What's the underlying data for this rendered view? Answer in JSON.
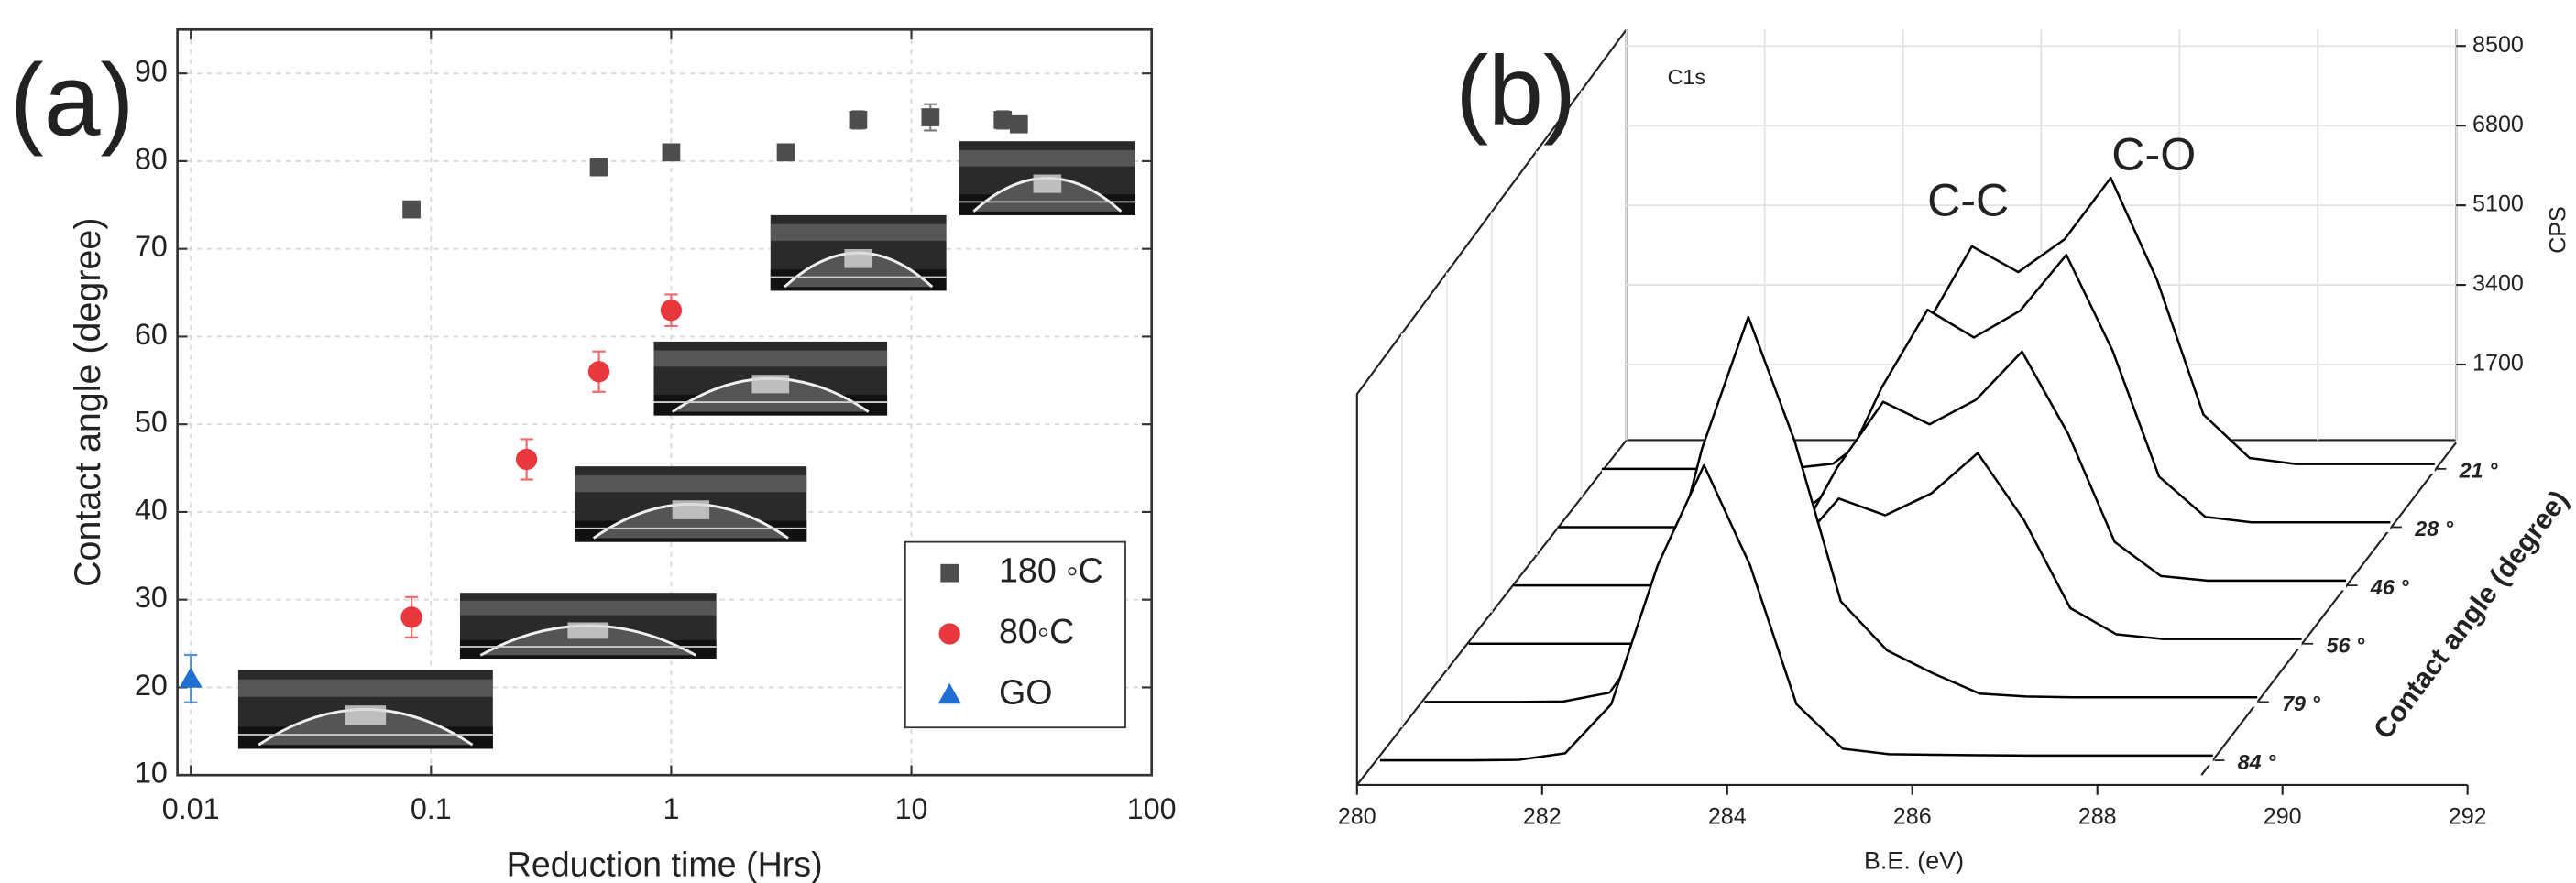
{
  "chart_data": [
    {
      "type": "scatter",
      "panel_label": "(a)",
      "xlabel": "Reduction time (Hrs)",
      "ylabel": "Contact angle (degree)",
      "xscale": "log",
      "xlim": [
        0.0088,
        100
      ],
      "xticks": [
        0.01,
        0.1,
        1,
        10,
        100
      ],
      "ylim": [
        10,
        95
      ],
      "yticks": [
        10,
        20,
        30,
        40,
        50,
        60,
        70,
        80,
        90
      ],
      "grid": true,
      "legend": "lower right",
      "series": [
        {
          "name": "180 ◦C",
          "color": "#4d4d4d",
          "marker": "square",
          "x": [
            0.083,
            0.5,
            1,
            3,
            6,
            12,
            24,
            28
          ],
          "values": [
            74.5,
            79.3,
            81,
            81,
            84.7,
            85,
            84.7,
            84.2
          ],
          "errors": [
            0.5,
            0.8,
            0.8,
            0.5,
            1,
            1.5,
            1,
            0.5
          ]
        },
        {
          "name": "80◦C",
          "color": "#e8373d",
          "marker": "circle",
          "x": [
            0.083,
            0.25,
            0.5,
            1
          ],
          "values": [
            28,
            46,
            56,
            63
          ],
          "errors": [
            2.3,
            2.3,
            2.3,
            1.8
          ]
        },
        {
          "name": "GO",
          "color": "#1f6fd1",
          "marker": "triangle",
          "x": [
            0.01
          ],
          "values": [
            21
          ],
          "errors": [
            2.7
          ]
        }
      ]
    },
    {
      "type": "waterfall",
      "panel_label": "(b)",
      "title": "C1s",
      "annotations": [
        "C-C",
        "C-O"
      ],
      "xlabel": "B.E. (eV)",
      "ylabel": "CPS",
      "zlabel": "Contact angle (degree)",
      "x": [
        280,
        280.5,
        281,
        281.5,
        282,
        282.5,
        283,
        283.5,
        284,
        284.5,
        285,
        285.5,
        286,
        286.5,
        287,
        287.5,
        288,
        288.5,
        289
      ],
      "xlim": [
        280,
        292
      ],
      "xticks": [
        280,
        282,
        284,
        286,
        288,
        290,
        292
      ],
      "ylim": [
        0,
        8500
      ],
      "yticks": [
        1700,
        3400,
        5100,
        6800,
        8500
      ],
      "grid": true,
      "series": [
        {
          "name": "21 °",
          "color": "#000000",
          "values": [
            0,
            0,
            0,
            0,
            0,
            110,
            870,
            3040,
            4750,
            4200,
            4900,
            6210,
            4030,
            1160,
            230,
            100,
            100,
            100,
            100
          ]
        },
        {
          "name": "28 °",
          "color": "#000000",
          "values": [
            0,
            0,
            0,
            0,
            0,
            110,
            860,
            2970,
            4640,
            4050,
            4620,
            5810,
            3760,
            1080,
            220,
            100,
            100,
            100,
            100
          ]
        },
        {
          "name": "46 °",
          "color": "#000000",
          "values": [
            0,
            0,
            0,
            0,
            0,
            90,
            720,
            2510,
            3920,
            3440,
            3960,
            4990,
            3230,
            930,
            200,
            100,
            100,
            100,
            100
          ]
        },
        {
          "name": "56 °",
          "color": "#000000",
          "values": [
            0,
            0,
            0,
            0,
            0,
            70,
            570,
            1980,
            3100,
            2740,
            3210,
            4070,
            2640,
            760,
            200,
            100,
            100,
            100,
            100
          ]
        },
        {
          "name": "79 °",
          "color": "#000000",
          "values": [
            0,
            0,
            0,
            10,
            200,
            1560,
            5410,
            8220,
            5580,
            2150,
            1100,
            610,
            180,
            120,
            100,
            100,
            100,
            100,
            100
          ]
        },
        {
          "name": "84 °",
          "color": "#000000",
          "values": [
            0,
            0,
            0,
            10,
            150,
            1200,
            4160,
            6300,
            4160,
            1200,
            250,
            130,
            120,
            110,
            100,
            100,
            100,
            100,
            100
          ]
        }
      ]
    }
  ]
}
